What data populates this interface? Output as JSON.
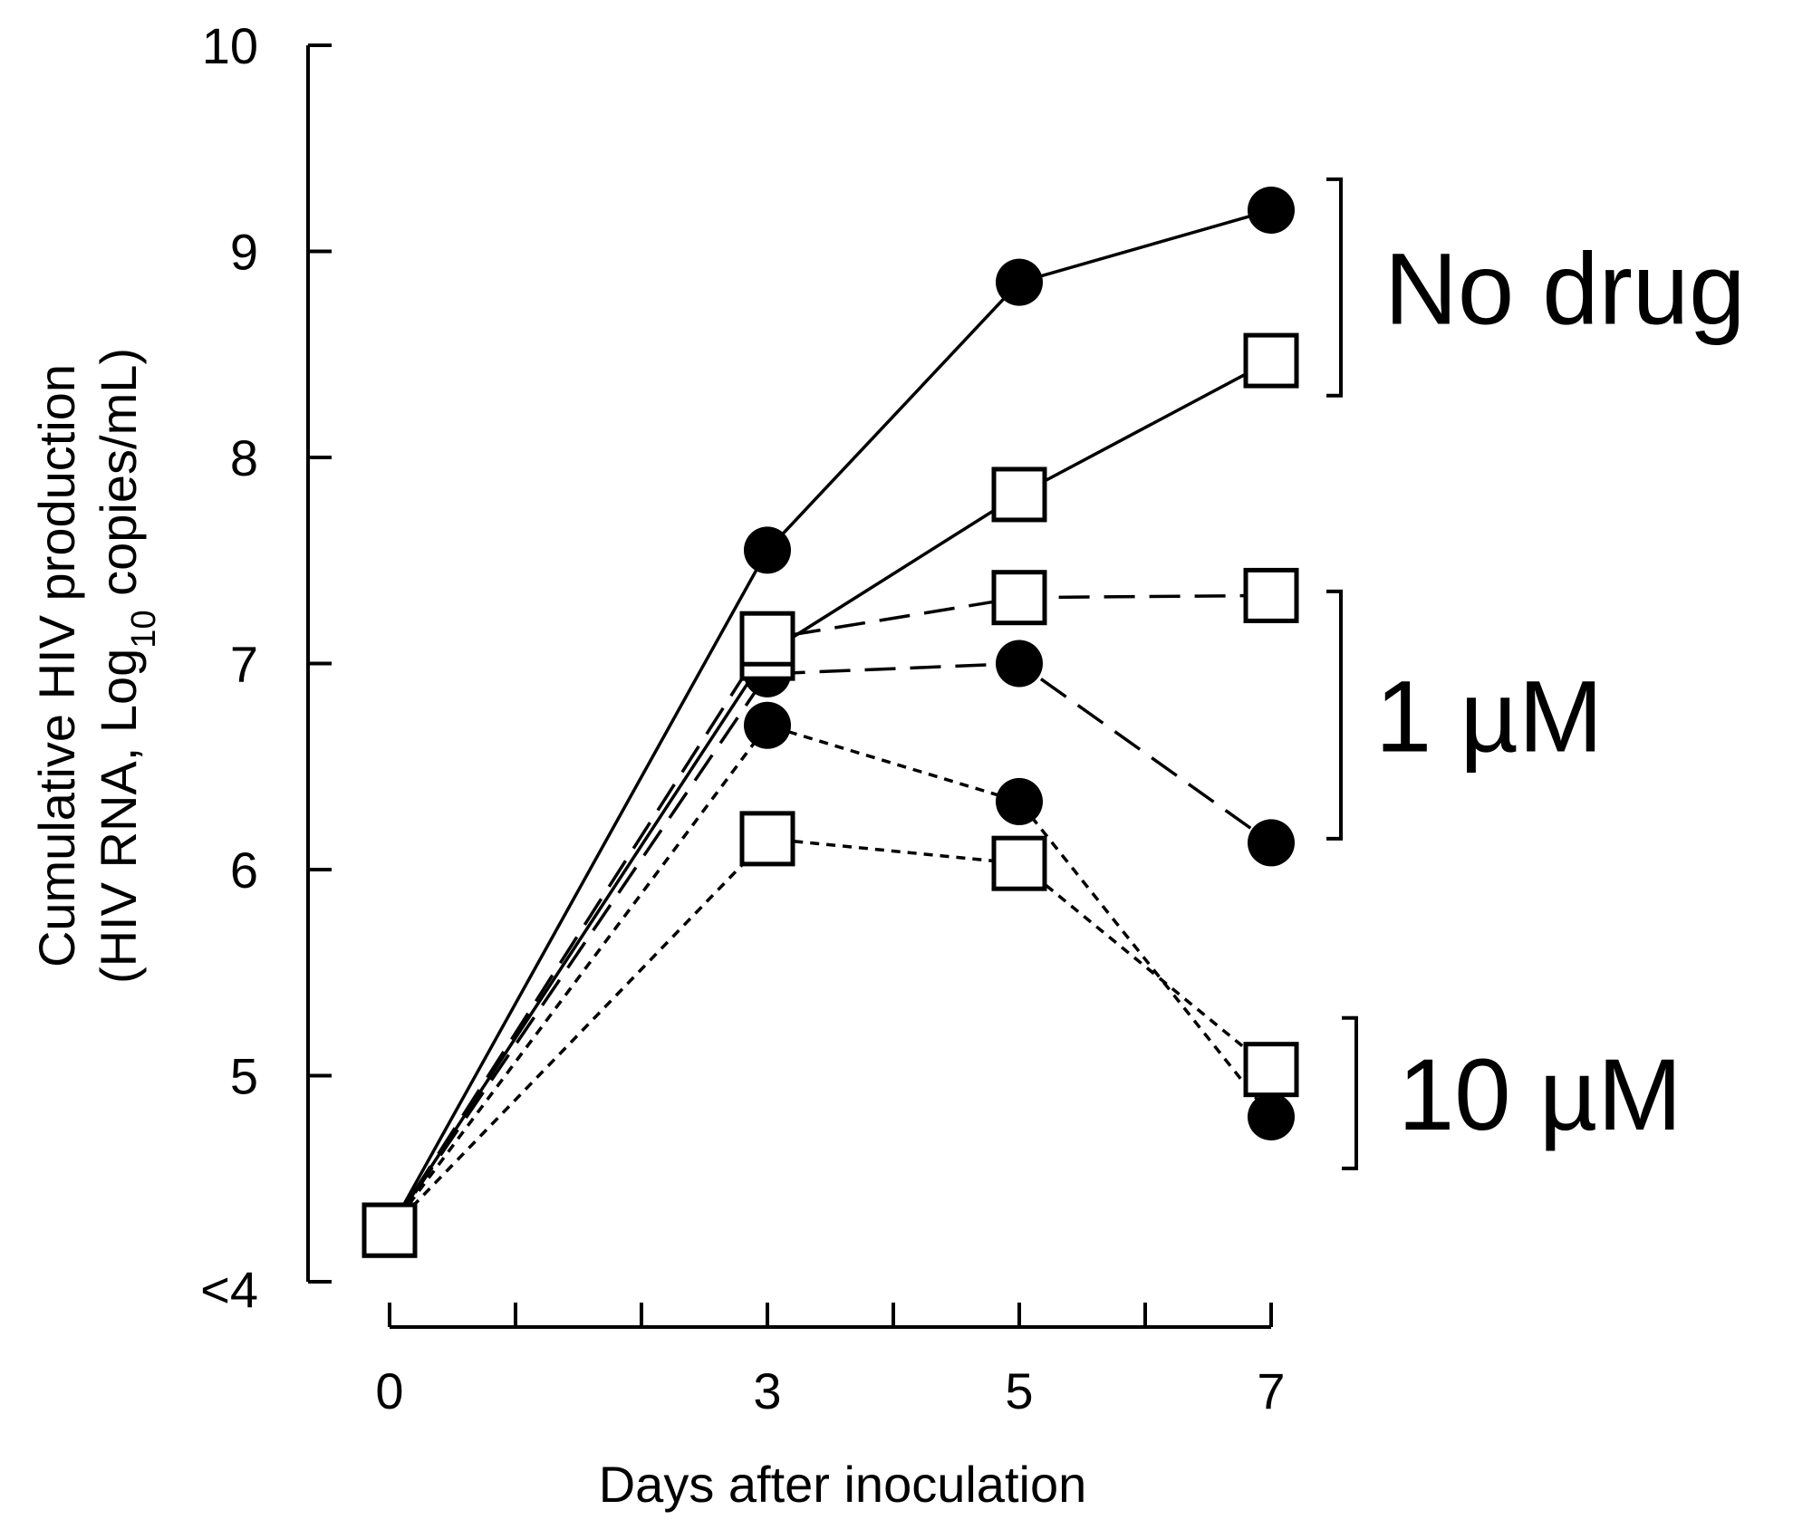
{
  "chart_data": {
    "type": "line",
    "xlabel": "Days after inoculation",
    "ylabel_line1": "Cumulative  HIV production",
    "ylabel_line2_prefix": "(HIV RNA,  Log",
    "ylabel_subscript": "10",
    "ylabel_line2_suffix": " copies/mL)",
    "x_ticks": [
      "0",
      "3",
      "5",
      "7"
    ],
    "x_minor_ticks": [
      1,
      2,
      4,
      6
    ],
    "y_ticks": [
      "<4",
      "5",
      "6",
      "7",
      "8",
      "9",
      "10"
    ],
    "xlim": [
      0,
      7
    ],
    "ylim": [
      4,
      10
    ],
    "grid": false,
    "series": [
      {
        "name": "No drug (filled circle)",
        "group": "No drug",
        "marker": "circle",
        "dash": "solid",
        "x": [
          0,
          3,
          5,
          7
        ],
        "values": [
          4.25,
          7.55,
          8.85,
          9.2
        ]
      },
      {
        "name": "No drug (open square)",
        "group": "No drug",
        "marker": "square",
        "dash": "solid",
        "x": [
          0,
          3,
          5,
          7
        ],
        "values": [
          4.25,
          7.05,
          7.82,
          8.47
        ]
      },
      {
        "name": "1 µM (open square)",
        "group": "1 µM",
        "marker": "square",
        "dash": "long",
        "x": [
          0,
          3,
          5,
          7
        ],
        "values": [
          4.25,
          7.12,
          7.32,
          7.33
        ]
      },
      {
        "name": "1 µM (filled circle)",
        "group": "1 µM",
        "marker": "circle",
        "dash": "long",
        "x": [
          0,
          3,
          5,
          7
        ],
        "values": [
          4.25,
          6.95,
          7.0,
          6.13
        ]
      },
      {
        "name": "10 µM (filled circle)",
        "group": "10 µM",
        "marker": "circle",
        "dash": "short",
        "x": [
          0,
          3,
          5,
          7
        ],
        "values": [
          4.25,
          6.7,
          6.33,
          4.8
        ]
      },
      {
        "name": "10 µM (open square)",
        "group": "10 µM",
        "marker": "square",
        "dash": "short",
        "x": [
          0,
          3,
          5,
          7
        ],
        "values": [
          4.25,
          6.15,
          6.03,
          5.03
        ]
      }
    ],
    "annotations": [
      {
        "text": "No drug",
        "y_range": [
          8.3,
          9.35
        ]
      },
      {
        "text": "1 µM",
        "y_range": [
          6.15,
          7.35
        ]
      },
      {
        "text": "10 µM",
        "y_range": [
          4.55,
          5.28
        ]
      }
    ]
  }
}
